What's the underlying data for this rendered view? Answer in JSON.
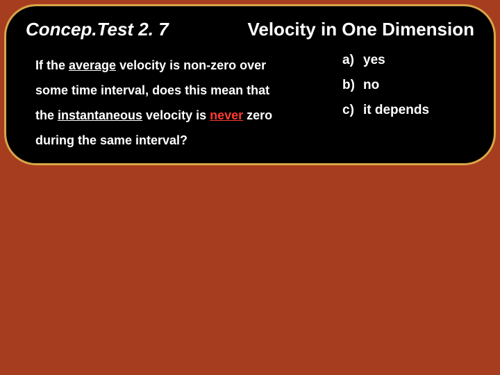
{
  "card": {
    "title_left": "Concep.Test 2. 7",
    "title_right": "Velocity in One Dimension",
    "question": {
      "line1_pre": "If the ",
      "line1_u": "average",
      "line1_post": " velocity is non-zero over",
      "line2": "some time interval, does this mean that",
      "line3_pre": "the ",
      "line3_u": "instantaneous",
      "line3_mid": " velocity is ",
      "line3_red": "never",
      "line3_post": " zero",
      "line4": "during the same interval?"
    },
    "options": [
      {
        "letter": "a)",
        "text": "yes"
      },
      {
        "letter": "b)",
        "text": "no"
      },
      {
        "letter": "c)",
        "text": "it depends"
      }
    ]
  },
  "colors": {
    "background": "#a73d1f",
    "card_bg": "#000000",
    "card_border": "#d9a648",
    "text": "#ffffff",
    "accent_red": "#ff3b30"
  }
}
